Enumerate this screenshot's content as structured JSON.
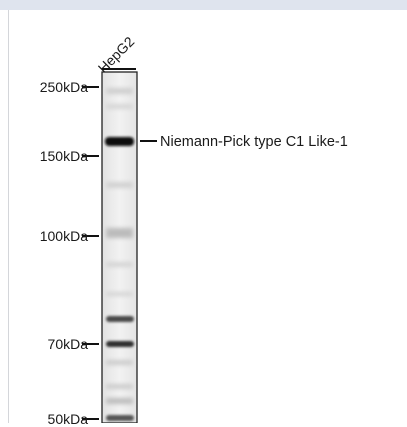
{
  "lane": {
    "label": "HepG2"
  },
  "markers": [
    {
      "label": "250kDa"
    },
    {
      "label": "150kDa"
    },
    {
      "label": "100kDa"
    },
    {
      "label": "70kDa"
    },
    {
      "label": "50kDa"
    }
  ],
  "band": {
    "label": "Niemann-Pick type C1 Like-1"
  },
  "colors": {
    "header_strip": "#dfe4ee",
    "ink": "#111111",
    "lane_background": "#efefef",
    "band_dark": "#0d0d0d"
  }
}
